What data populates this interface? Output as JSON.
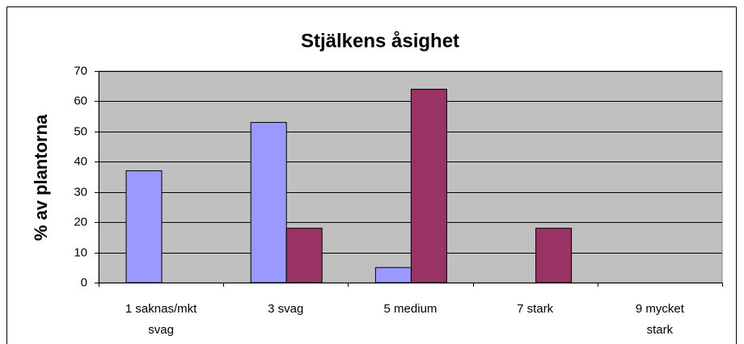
{
  "chart_data": {
    "type": "bar",
    "title": "Stjälkens åsighet",
    "y_label": "% av plantorna",
    "categories": [
      "1 saknas/mkt svag",
      "3 svag",
      "5 medium",
      "7 stark",
      "9 mycket stark"
    ],
    "series": [
      {
        "color": "#9999ff",
        "values": [
          37,
          53,
          5,
          0,
          0
        ]
      },
      {
        "color": "#993366",
        "values": [
          0,
          18,
          64,
          18,
          0
        ]
      }
    ],
    "ylim": [
      0,
      70
    ],
    "yticks": [
      0,
      10,
      20,
      30,
      40,
      50,
      60,
      70
    ],
    "grid": true
  }
}
